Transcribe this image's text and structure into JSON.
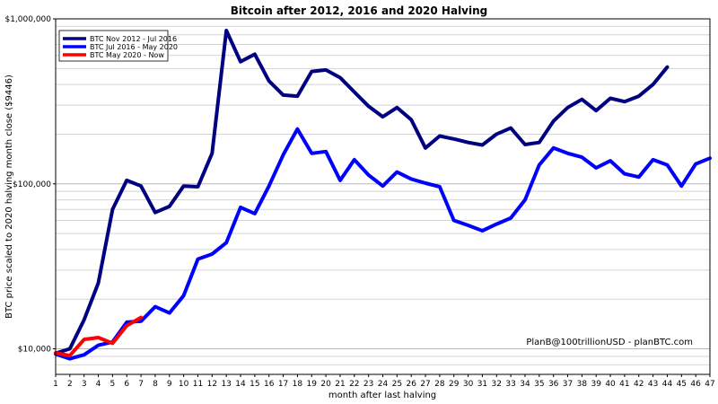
{
  "chart_data": {
    "type": "line",
    "title": "Bitcoin after 2012, 2016 and 2020 Halving",
    "xlabel": "month after last halving",
    "ylabel": "BTC price scaled to 2020 halving month close ($9446)",
    "xlim": [
      1,
      47
    ],
    "ylim": [
      7000,
      1000000
    ],
    "y_scale": "log",
    "x_ticks": [
      1,
      2,
      3,
      4,
      5,
      6,
      7,
      8,
      9,
      10,
      11,
      12,
      13,
      14,
      15,
      16,
      17,
      18,
      19,
      20,
      21,
      22,
      23,
      24,
      25,
      26,
      27,
      28,
      29,
      30,
      31,
      32,
      33,
      34,
      35,
      36,
      37,
      38,
      39,
      40,
      41,
      42,
      43,
      44,
      45,
      46,
      47
    ],
    "y_ticks": [
      {
        "value": 10000,
        "label": "$10,000"
      },
      {
        "value": 100000,
        "label": "$100,000"
      },
      {
        "value": 1000000,
        "label": "$1,000,000"
      }
    ],
    "grid": true,
    "legend_position": "top-left",
    "annotation": "PlanB@100trillionUSD  -  planBTC.com",
    "series": [
      {
        "name": "BTC Nov 2012 - Jul 2016",
        "color": "#000080",
        "x": [
          1,
          2,
          3,
          4,
          5,
          6,
          7,
          8,
          9,
          10,
          11,
          12,
          13,
          14,
          15,
          16,
          17,
          18,
          19,
          20,
          21,
          22,
          23,
          24,
          25,
          26,
          27,
          28,
          29,
          30,
          31,
          32,
          33,
          34,
          35,
          36,
          37,
          38,
          39,
          40,
          41,
          42,
          43,
          44
        ],
        "values": [
          9400,
          10000,
          15000,
          25000,
          70000,
          105000,
          97000,
          67000,
          73000,
          97000,
          96000,
          153000,
          850000,
          550000,
          610000,
          420000,
          345000,
          340000,
          480000,
          490000,
          440000,
          360000,
          295000,
          255000,
          290000,
          245000,
          165000,
          195000,
          187000,
          178000,
          172000,
          200000,
          218000,
          173000,
          178000,
          240000,
          290000,
          325000,
          278000,
          330000,
          315000,
          340000,
          400000,
          510000
        ]
      },
      {
        "name": "BTC Jul 2016 - May 2020",
        "color": "#0000ff",
        "x": [
          1,
          2,
          3,
          4,
          5,
          6,
          7,
          8,
          9,
          10,
          11,
          12,
          13,
          14,
          15,
          16,
          17,
          18,
          19,
          20,
          21,
          22,
          23,
          24,
          25,
          26,
          27,
          28,
          29,
          30,
          31,
          32,
          33,
          34,
          35,
          36,
          37,
          38,
          39,
          40,
          41,
          42,
          43,
          44,
          45,
          46,
          47
        ],
        "values": [
          9300,
          8700,
          9200,
          10500,
          11000,
          14500,
          14700,
          18000,
          16500,
          21000,
          35000,
          37500,
          44000,
          72000,
          66000,
          97000,
          150000,
          215000,
          153000,
          157000,
          105000,
          140000,
          113000,
          97000,
          118000,
          107000,
          101000,
          96000,
          60000,
          56000,
          52000,
          57000,
          62000,
          80000,
          130000,
          165000,
          153000,
          145000,
          125000,
          138000,
          115000,
          110000,
          140000,
          130000,
          97000,
          132000,
          143000
        ]
      },
      {
        "name": "BTC May 2020 - Now",
        "color": "#ff0000",
        "x": [
          1,
          2,
          3,
          4,
          5,
          6,
          7
        ],
        "values": [
          9446,
          9100,
          11400,
          11700,
          10800,
          13800,
          15500
        ]
      }
    ]
  }
}
